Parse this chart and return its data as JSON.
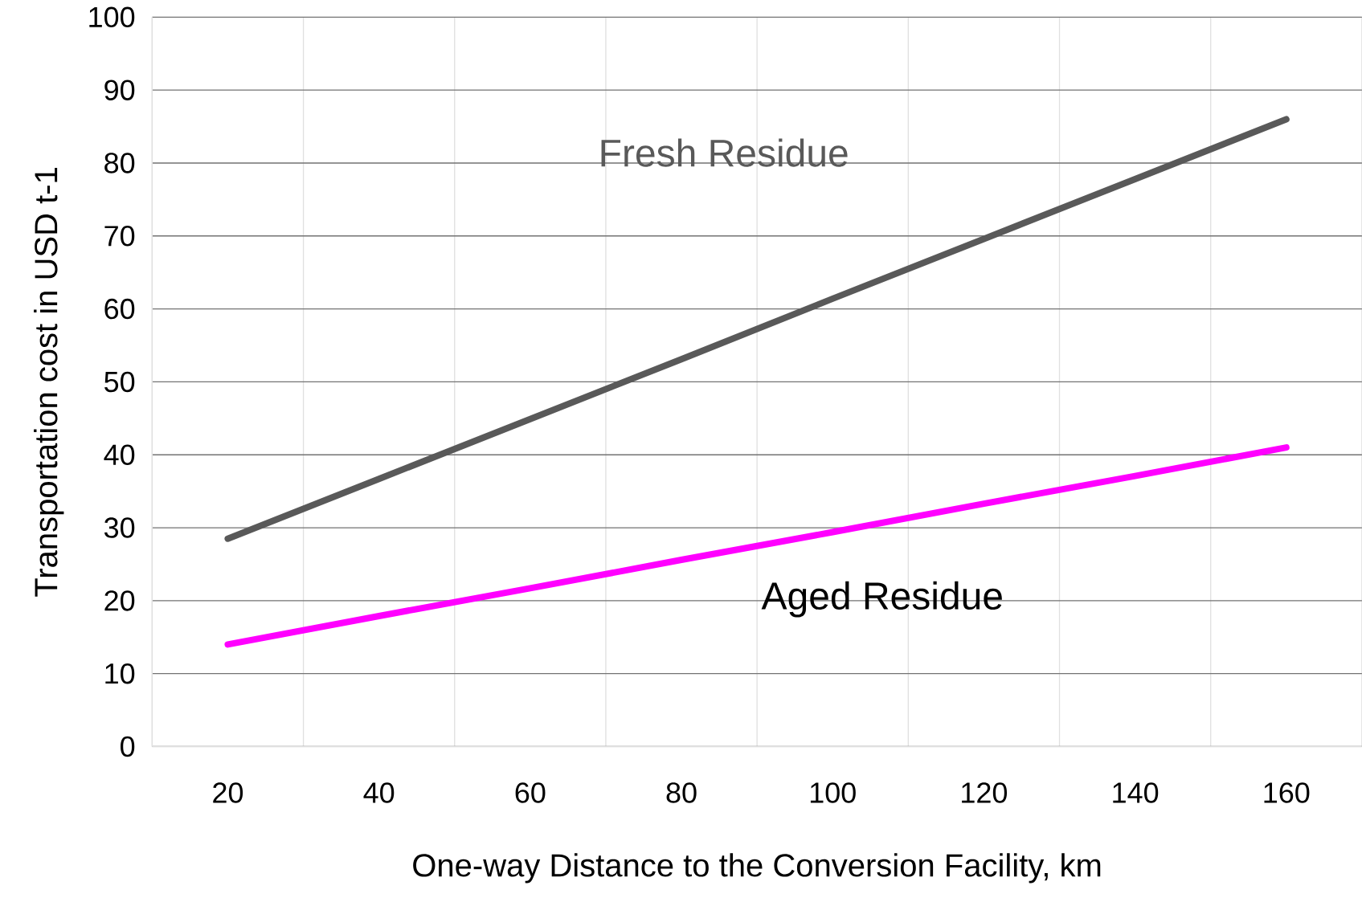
{
  "chart_data": {
    "type": "line",
    "xlabel": "One-way Distance to the Conversion Facility, km",
    "ylabel": "Transportation cost in USD t-1",
    "categories": [
      "20",
      "40",
      "60",
      "80",
      "100",
      "120",
      "140",
      "160"
    ],
    "series": [
      {
        "name": "Fresh Residue",
        "color": "#595959",
        "values": [
          28.5,
          36.7,
          44.9,
          53.1,
          61.4,
          69.6,
          77.8,
          86
        ]
      },
      {
        "name": "Aged Residue",
        "color": "#ff00ff",
        "values": [
          14,
          17.9,
          21.7,
          25.6,
          29.4,
          33.3,
          37.1,
          41
        ]
      }
    ],
    "ylim": [
      0,
      100
    ],
    "yticks": [
      0,
      10,
      20,
      30,
      40,
      50,
      60,
      70,
      80,
      90,
      100
    ],
    "grid": true,
    "legend": false,
    "marker": "none",
    "line_style": "solid"
  }
}
